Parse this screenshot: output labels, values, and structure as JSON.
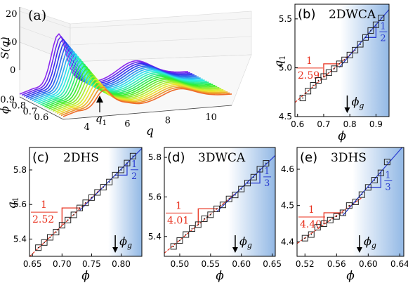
{
  "figure": {
    "panel_a": {
      "label": "(a)",
      "zlabel": "S(q)",
      "xlabel": "q",
      "ylabel": "ϕ",
      "peak_label": "q",
      "peak_sub": "1",
      "z_ticks": [
        "0",
        "10",
        "20"
      ],
      "q_ticks": [
        "4",
        "6",
        "8",
        "10"
      ],
      "phi_ticks": [
        "0.6",
        "0.7",
        "0.8",
        "0.9"
      ]
    }
  },
  "chart_data": [
    {
      "type": "scatter",
      "panel": "(b)",
      "title": "2DWCA",
      "xlabel": "ϕ",
      "ylabel": "q",
      "ylabel_sub": "1",
      "xlim": [
        0.59,
        0.95
      ],
      "ylim": [
        4.5,
        5.65
      ],
      "xticks": [
        "0.6",
        "0.7",
        "0.8",
        "0.9"
      ],
      "yticks": [
        "4.5",
        "5.0",
        "5.5"
      ],
      "phi_g": 0.79,
      "phi_g_label": "ϕ",
      "phi_g_sub": "g",
      "slope_low": {
        "num": "1",
        "den": "2.59",
        "color": "#e8311e"
      },
      "slope_high": {
        "num": "1",
        "den": "2",
        "color": "#2a3cd0"
      },
      "points": [
        [
          0.62,
          4.69
        ],
        [
          0.64,
          4.76
        ],
        [
          0.66,
          4.82
        ],
        [
          0.68,
          4.87
        ],
        [
          0.7,
          4.91
        ],
        [
          0.72,
          4.95
        ],
        [
          0.74,
          4.99
        ],
        [
          0.76,
          5.04
        ],
        [
          0.78,
          5.08
        ],
        [
          0.8,
          5.13
        ],
        [
          0.82,
          5.18
        ],
        [
          0.84,
          5.24
        ],
        [
          0.86,
          5.31
        ],
        [
          0.88,
          5.38
        ],
        [
          0.9,
          5.44
        ],
        [
          0.92,
          5.51
        ]
      ]
    },
    {
      "type": "scatter",
      "panel": "(c)",
      "title": "2DHS",
      "xlabel": "ϕ",
      "ylabel": "q",
      "ylabel_sub": "1",
      "xlim": [
        0.645,
        0.835
      ],
      "ylim": [
        5.3,
        5.93
      ],
      "xticks": [
        "0.65",
        "0.70",
        "0.75",
        "0.80"
      ],
      "yticks": [
        "5.4",
        "5.6",
        "5.8"
      ],
      "phi_g": 0.79,
      "phi_g_label": "ϕ",
      "phi_g_sub": "g",
      "slope_low": {
        "num": "1",
        "den": "2.52",
        "color": "#e8311e"
      },
      "slope_high": {
        "num": "1",
        "den": "2",
        "color": "#2a3cd0"
      },
      "points": [
        [
          0.66,
          5.35
        ],
        [
          0.67,
          5.38
        ],
        [
          0.68,
          5.41
        ],
        [
          0.69,
          5.44
        ],
        [
          0.7,
          5.48
        ],
        [
          0.71,
          5.51
        ],
        [
          0.72,
          5.54
        ],
        [
          0.73,
          5.58
        ],
        [
          0.74,
          5.61
        ],
        [
          0.75,
          5.64
        ],
        [
          0.76,
          5.67
        ],
        [
          0.77,
          5.7
        ],
        [
          0.78,
          5.73
        ],
        [
          0.79,
          5.77
        ],
        [
          0.8,
          5.8
        ],
        [
          0.81,
          5.84
        ],
        [
          0.82,
          5.88
        ]
      ]
    },
    {
      "type": "scatter",
      "panel": "(d)",
      "title": "3DWCA",
      "xlabel": "ϕ",
      "ylabel": "",
      "xlim": [
        0.475,
        0.655
      ],
      "ylim": [
        5.3,
        5.85
      ],
      "xticks": [
        "0.50",
        "0.55",
        "0.60",
        "0.65"
      ],
      "yticks": [
        "5.4",
        "5.6",
        "5.8"
      ],
      "phi_g": 0.59,
      "phi_g_label": "ϕ",
      "phi_g_sub": "g",
      "slope_low": {
        "num": "1",
        "den": "4.01",
        "color": "#e8311e"
      },
      "slope_high": {
        "num": "1",
        "den": "3",
        "color": "#2a3cd0"
      },
      "points": [
        [
          0.49,
          5.35
        ],
        [
          0.5,
          5.38
        ],
        [
          0.51,
          5.41
        ],
        [
          0.52,
          5.44
        ],
        [
          0.53,
          5.46
        ],
        [
          0.54,
          5.49
        ],
        [
          0.55,
          5.51
        ],
        [
          0.56,
          5.54
        ],
        [
          0.57,
          5.56
        ],
        [
          0.58,
          5.59
        ],
        [
          0.59,
          5.61
        ],
        [
          0.6,
          5.64
        ],
        [
          0.61,
          5.67
        ],
        [
          0.62,
          5.7
        ],
        [
          0.63,
          5.74
        ],
        [
          0.64,
          5.77
        ]
      ]
    },
    {
      "type": "scatter",
      "panel": "(e)",
      "title": "3DHS",
      "xlabel": "ϕ",
      "ylabel": "",
      "xlim": [
        0.51,
        0.645
      ],
      "ylim": [
        4.36,
        4.66
      ],
      "xticks": [
        "0.52",
        "0.56",
        "0.60",
        "0.64"
      ],
      "yticks": [
        "4.4",
        "4.5",
        "4.6"
      ],
      "phi_g": 0.589,
      "phi_g_label": "ϕ",
      "phi_g_sub": "g",
      "slope_low": {
        "num": "1",
        "den": "4.40",
        "color": "#e8311e"
      },
      "slope_high": {
        "num": "1",
        "den": "3",
        "color": "#2a3cd0"
      },
      "points": [
        [
          0.52,
          4.41
        ],
        [
          0.528,
          4.42
        ],
        [
          0.536,
          4.44
        ],
        [
          0.544,
          4.45
        ],
        [
          0.552,
          4.46
        ],
        [
          0.56,
          4.47
        ],
        [
          0.568,
          4.48
        ],
        [
          0.576,
          4.5
        ],
        [
          0.584,
          4.51
        ],
        [
          0.592,
          4.53
        ],
        [
          0.6,
          4.55
        ],
        [
          0.608,
          4.57
        ],
        [
          0.616,
          4.59
        ],
        [
          0.624,
          4.62
        ]
      ]
    }
  ]
}
